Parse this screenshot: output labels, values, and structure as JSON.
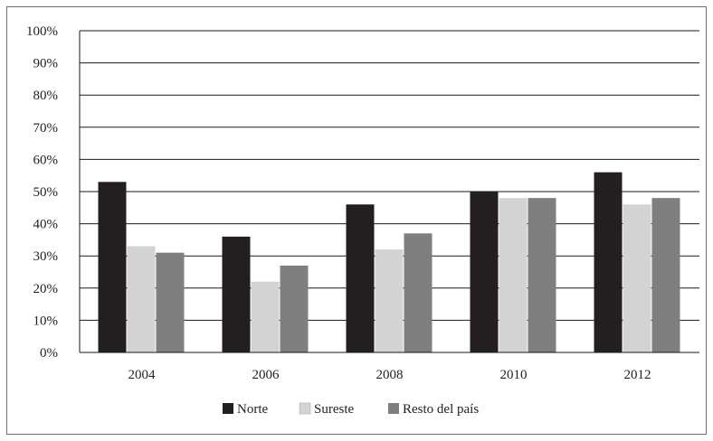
{
  "chart_data": {
    "type": "bar",
    "title": "",
    "xlabel": "",
    "ylabel": "",
    "categories": [
      "2004",
      "2006",
      "2008",
      "2010",
      "2012"
    ],
    "y_ticks": [
      "0%",
      "10%",
      "20%",
      "30%",
      "40%",
      "50%",
      "60%",
      "70%",
      "80%",
      "90%",
      "100%"
    ],
    "ylim": [
      0,
      100
    ],
    "grid": "horizontal",
    "legend_position": "bottom",
    "series": [
      {
        "name": "Norte",
        "color": "#231f20",
        "values": [
          53,
          36,
          46,
          50,
          56
        ]
      },
      {
        "name": "Sureste",
        "color": "#d3d3d3",
        "values": [
          33,
          22,
          32,
          48,
          46
        ]
      },
      {
        "name": "Resto del país",
        "color": "#7f7f7f",
        "values": [
          31,
          27,
          37,
          48,
          48
        ]
      }
    ]
  }
}
